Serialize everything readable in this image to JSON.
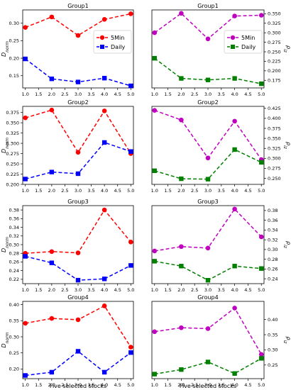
{
  "x_axis_label": "Five selected stocks",
  "colors": {
    "5Min_dnorm": "#ff0000",
    "daily_dnorm": "#0000ff",
    "5Min_rho": "#bf00bf",
    "daily_rho": "#008000"
  },
  "chart_data": [
    {
      "type": "line",
      "panel": "left",
      "row": 0,
      "title": "Group1",
      "ylabel": "D_norm",
      "x": [
        1,
        2,
        3,
        4,
        5
      ],
      "xlim": [
        0.9,
        5.1
      ],
      "xticks": [
        1.0,
        1.5,
        2.0,
        2.5,
        3.0,
        3.5,
        4.0,
        4.5,
        5.0
      ],
      "ylim": [
        0.115,
        0.338
      ],
      "yticks": [
        0.15,
        0.2,
        0.25,
        0.3
      ],
      "tick_decimals": 2,
      "legend": "right",
      "series": [
        {
          "name": "5Min",
          "marker": "circle",
          "values": [
            0.288,
            0.318,
            0.265,
            0.311,
            0.327
          ]
        },
        {
          "name": "Daily",
          "marker": "square",
          "values": [
            0.198,
            0.141,
            0.132,
            0.143,
            0.121
          ]
        }
      ]
    },
    {
      "type": "line",
      "panel": "right",
      "row": 0,
      "title": "Group1",
      "ylabel": "ρ_iz",
      "x": [
        1,
        2,
        3,
        4,
        5
      ],
      "xlim": [
        0.9,
        5.1
      ],
      "xticks": [
        1.0,
        1.5,
        2.0,
        2.5,
        3.0,
        3.5,
        4.0,
        4.5,
        5.0
      ],
      "ylim": [
        0.155,
        0.36
      ],
      "yticks": [
        0.175,
        0.2,
        0.225,
        0.25,
        0.275,
        0.3,
        0.325,
        0.35
      ],
      "tick_decimals": 3,
      "legend": "right",
      "series": [
        {
          "name": "5Min",
          "marker": "circle",
          "values": [
            0.3,
            0.351,
            0.284,
            0.344,
            0.346
          ]
        },
        {
          "name": "Daily",
          "marker": "square",
          "values": [
            0.233,
            0.18,
            0.176,
            0.18,
            0.166
          ]
        }
      ]
    },
    {
      "type": "line",
      "panel": "left",
      "row": 1,
      "title": "Group2",
      "ylabel": "D_norm",
      "x": [
        1,
        2,
        3,
        4,
        5
      ],
      "xlim": [
        0.9,
        5.1
      ],
      "xticks": [
        1.0,
        1.5,
        2.0,
        2.5,
        3.0,
        3.5,
        4.0,
        4.5,
        5.0
      ],
      "ylim": [
        0.2,
        0.39
      ],
      "yticks": [
        0.2,
        0.225,
        0.25,
        0.275,
        0.3,
        0.325,
        0.35,
        0.375
      ],
      "tick_decimals": 3,
      "series": [
        {
          "name": "5Min",
          "marker": "circle",
          "values": [
            0.362,
            0.381,
            0.278,
            0.379,
            0.275
          ]
        },
        {
          "name": "Daily",
          "marker": "square",
          "values": [
            0.213,
            0.23,
            0.226,
            0.302,
            0.28
          ]
        }
      ]
    },
    {
      "type": "line",
      "panel": "right",
      "row": 1,
      "title": "Group2",
      "ylabel": "ρ_iz",
      "x": [
        1,
        2,
        3,
        4,
        5
      ],
      "xlim": [
        0.9,
        5.1
      ],
      "xticks": [
        1.0,
        1.5,
        2.0,
        2.5,
        3.0,
        3.5,
        4.0,
        4.5,
        5.0
      ],
      "ylim": [
        0.235,
        0.43
      ],
      "yticks": [
        0.25,
        0.275,
        0.3,
        0.325,
        0.35,
        0.375,
        0.4,
        0.425
      ],
      "tick_decimals": 3,
      "series": [
        {
          "name": "5Min",
          "marker": "circle",
          "values": [
            0.42,
            0.396,
            0.301,
            0.393,
            0.297
          ]
        },
        {
          "name": "Daily",
          "marker": "square",
          "values": [
            0.269,
            0.249,
            0.248,
            0.322,
            0.29
          ]
        }
      ]
    },
    {
      "type": "line",
      "panel": "left",
      "row": 2,
      "title": "Group3",
      "ylabel": "D_norm",
      "x": [
        1,
        2,
        3,
        4,
        5
      ],
      "xlim": [
        0.9,
        5.1
      ],
      "xticks": [
        1.0,
        1.5,
        2.0,
        2.5,
        3.0,
        3.5,
        4.0,
        4.5,
        5.0
      ],
      "ylim": [
        0.21,
        0.39
      ],
      "yticks": [
        0.22,
        0.24,
        0.26,
        0.28,
        0.3,
        0.32,
        0.34,
        0.36,
        0.38
      ],
      "tick_decimals": 2,
      "series": [
        {
          "name": "5Min",
          "marker": "circle",
          "values": [
            0.28,
            0.284,
            0.281,
            0.38,
            0.306
          ]
        },
        {
          "name": "Daily",
          "marker": "square",
          "values": [
            0.273,
            0.258,
            0.218,
            0.221,
            0.252
          ]
        }
      ]
    },
    {
      "type": "line",
      "panel": "right",
      "row": 2,
      "title": "Group3",
      "ylabel": "ρ_iz",
      "x": [
        1,
        2,
        3,
        4,
        5
      ],
      "xlim": [
        0.9,
        5.1
      ],
      "xticks": [
        1.0,
        1.5,
        2.0,
        2.5,
        3.0,
        3.5,
        4.0,
        4.5,
        5.0
      ],
      "ylim": [
        0.23,
        0.39
      ],
      "yticks": [
        0.24,
        0.26,
        0.28,
        0.3,
        0.32,
        0.34,
        0.36,
        0.38
      ],
      "tick_decimals": 2,
      "series": [
        {
          "name": "5Min",
          "marker": "circle",
          "values": [
            0.297,
            0.306,
            0.303,
            0.383,
            0.326
          ]
        },
        {
          "name": "Daily",
          "marker": "square",
          "values": [
            0.276,
            0.266,
            0.237,
            0.266,
            0.261
          ]
        }
      ]
    },
    {
      "type": "line",
      "panel": "left",
      "row": 3,
      "title": "Group4",
      "ylabel": "D_norm",
      "x": [
        1,
        2,
        3,
        4,
        5
      ],
      "xlim": [
        0.9,
        5.1
      ],
      "xticks": [
        1.0,
        1.5,
        2.0,
        2.5,
        3.0,
        3.5,
        4.0,
        4.5,
        5.0
      ],
      "ylim": [
        0.17,
        0.41
      ],
      "yticks": [
        0.2,
        0.25,
        0.3,
        0.35,
        0.4
      ],
      "tick_decimals": 2,
      "series": [
        {
          "name": "5Min",
          "marker": "circle",
          "values": [
            0.342,
            0.357,
            0.353,
            0.396,
            0.268
          ]
        },
        {
          "name": "Daily",
          "marker": "square",
          "values": [
            0.18,
            0.19,
            0.255,
            0.19,
            0.251
          ]
        }
      ]
    },
    {
      "type": "line",
      "panel": "right",
      "row": 3,
      "title": "Group4",
      "ylabel": "ρ_iz",
      "x": [
        1,
        2,
        3,
        4,
        5
      ],
      "xlim": [
        0.9,
        5.1
      ],
      "xticks": [
        1.0,
        1.5,
        2.0,
        2.5,
        3.0,
        3.5,
        4.0,
        4.5,
        5.0
      ],
      "ylim": [
        0.205,
        0.46
      ],
      "yticks": [
        0.25,
        0.3,
        0.35,
        0.4
      ],
      "tick_decimals": 2,
      "series": [
        {
          "name": "5Min",
          "marker": "circle",
          "values": [
            0.36,
            0.373,
            0.37,
            0.438,
            0.285
          ]
        },
        {
          "name": "Daily",
          "marker": "square",
          "values": [
            0.22,
            0.235,
            0.26,
            0.222,
            0.272
          ]
        }
      ]
    }
  ]
}
